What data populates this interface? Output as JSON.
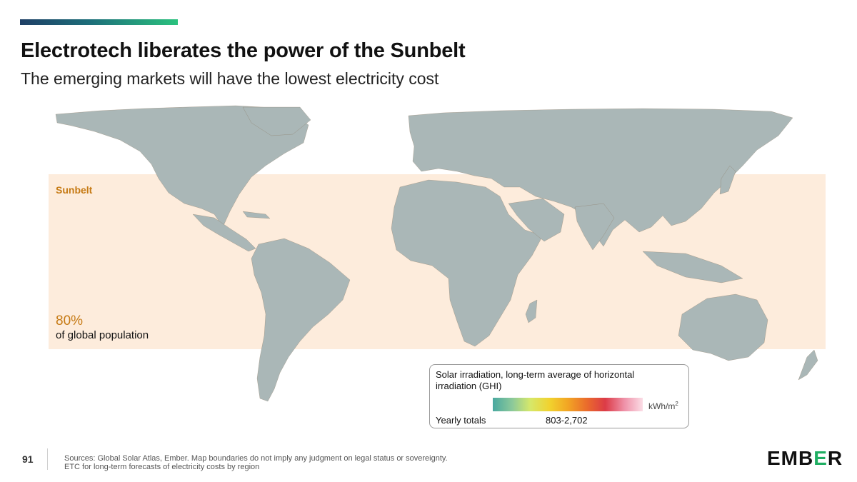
{
  "header": {
    "title": "Electrotech liberates the power of the Sunbelt",
    "subtitle": "The emerging markets will have the lowest electricity cost"
  },
  "map": {
    "sunbelt_label": "Sunbelt",
    "population_value": "80%",
    "population_text": "of global population"
  },
  "legend": {
    "title": "Solar irradiation, long-term average of horizontal irradiation (GHI)",
    "unit": "kWh/m",
    "unit_superscript": "2",
    "yearly_label": "Yearly totals",
    "range": "803-2,702",
    "colors": [
      "#49a8a0",
      "#8cc99a",
      "#d6e86a",
      "#f1d22e",
      "#f2a524",
      "#ea6a2c",
      "#dc3b47",
      "#ef93aa",
      "#fbdde6"
    ]
  },
  "footer": {
    "page_number": "91",
    "sources_line1": "Sources: Global Solar Atlas, Ember. Map boundaries do not imply any judgment on legal status or sovereignty.",
    "sources_line2": "ETC for long-term forecasts of electricity costs by region",
    "logo_part1": "EMB",
    "logo_e": "E",
    "logo_part2": "R"
  }
}
